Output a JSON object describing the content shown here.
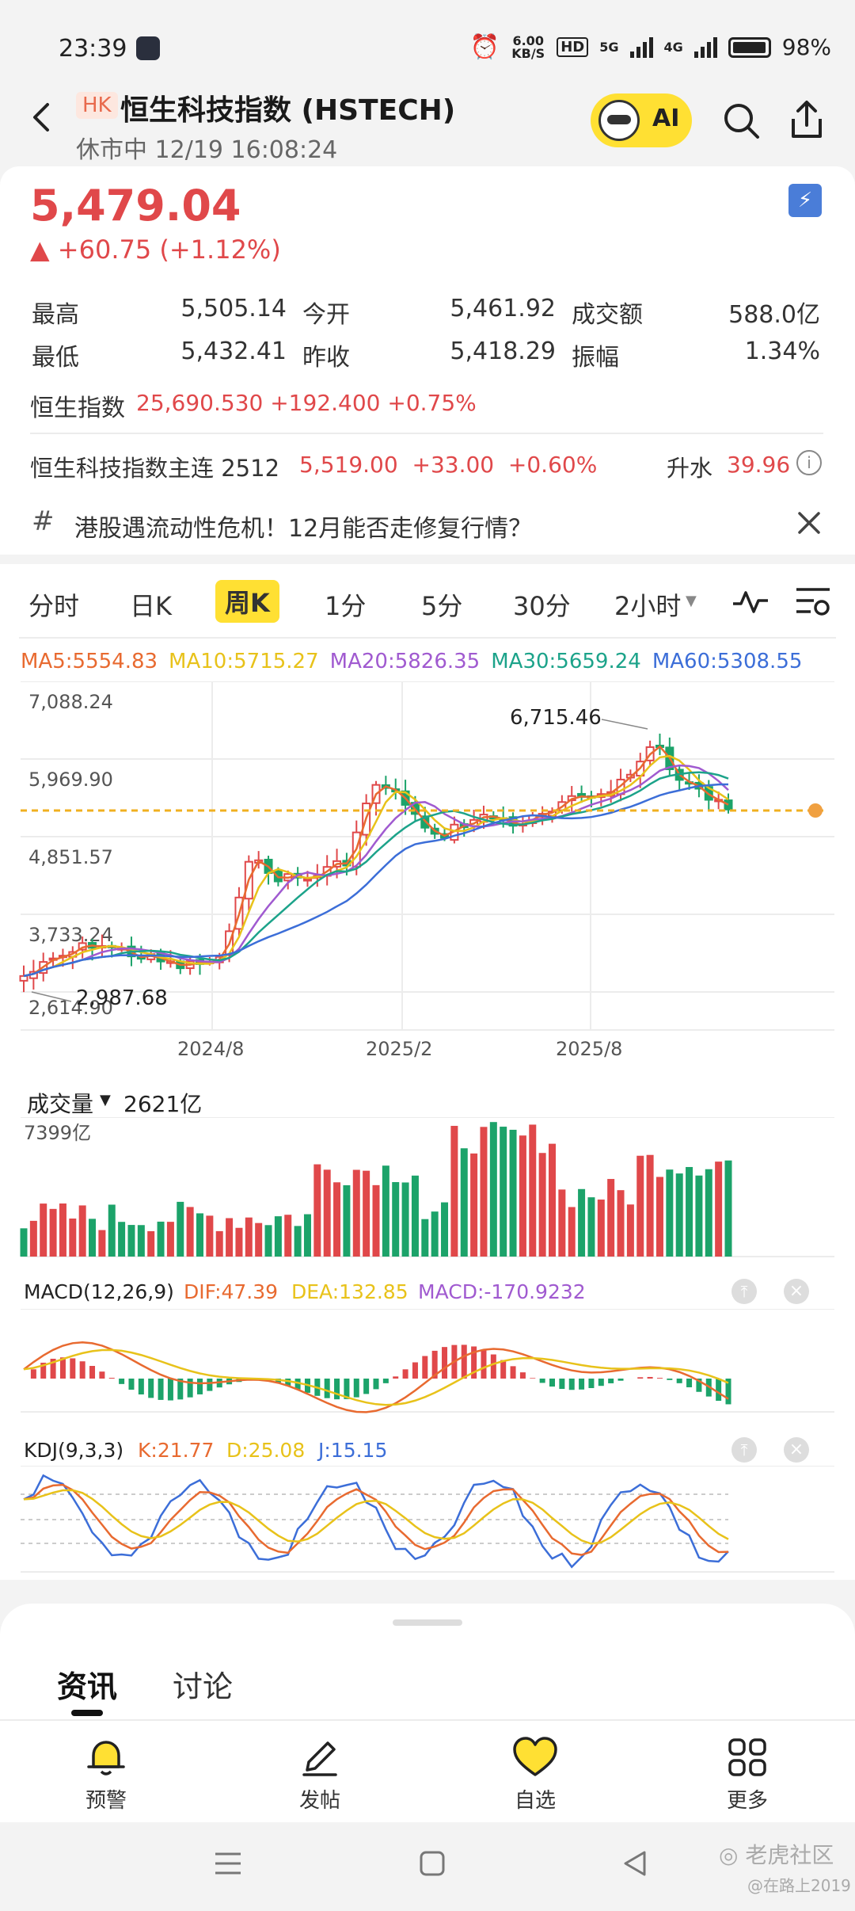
{
  "status": {
    "time": "23:39",
    "speed": "6.00 KB/S",
    "hd": "HD",
    "net1": "5G",
    "net2": "4G",
    "battery": "98%"
  },
  "header": {
    "badge": "HK",
    "title": "恒生科技指数 (HSTECH)",
    "subtitle": "休市中 12/19 16:08:24",
    "ai": "AI"
  },
  "quote": {
    "price": "5,479.04",
    "change": "▲ +60.75 (+1.12%)",
    "stats": [
      {
        "label": "最高",
        "value": "5,505.14"
      },
      {
        "label": "今开",
        "value": "5,461.92"
      },
      {
        "label": "成交额",
        "value": "588.0亿"
      },
      {
        "label": "最低",
        "value": "5,432.41"
      },
      {
        "label": "昨收",
        "value": "5,418.29"
      },
      {
        "label": "振幅",
        "value": "1.34%"
      }
    ],
    "hsi_label": "恒生指数",
    "hsi_value": "25,690.530 +192.400 +0.75%",
    "futures_label": "恒生科技指数主连 2512",
    "futures_value": "5,519.00  +33.00  +0.60%",
    "premium_label": "升水",
    "premium_value": "39.96"
  },
  "news": {
    "text": "港股遇流动性危机！12月能否走修复行情？"
  },
  "tabs": [
    "分时",
    "日K",
    "周K",
    "1分",
    "5分",
    "30分",
    "2小时"
  ],
  "ma": [
    {
      "label": "MA5:5554.83",
      "color": "#e86a30"
    },
    {
      "label": "MA10:5715.27",
      "color": "#e8c21a"
    },
    {
      "label": "MA20:5826.35",
      "color": "#a05ad0"
    },
    {
      "label": "MA30:5659.24",
      "color": "#1ca38a"
    },
    {
      "label": "MA60:5308.55",
      "color": "#3c6ed8"
    }
  ],
  "price_axis": [
    "7,088.24",
    "5,969.90",
    "4,851.57",
    "3,733.24",
    "2,614.90"
  ],
  "annotations": {
    "high": "6,715.46",
    "low": "2,987.68"
  },
  "x_axis": [
    "2024/8",
    "2025/2",
    "2025/8"
  ],
  "volume": {
    "label": "成交量",
    "value": "2621亿",
    "max": "7399亿"
  },
  "macd": {
    "label": "MACD(12,26,9)",
    "dif": "DIF:47.39",
    "dea": "DEA:132.85",
    "macd": "MACD:-170.9232"
  },
  "kdj": {
    "label": "KDJ(9,3,3)",
    "k": "K:21.77",
    "d": "D:25.08",
    "j": "J:15.15"
  },
  "sheet_tabs": {
    "news": "资讯",
    "discuss": "讨论"
  },
  "nav": [
    {
      "label": "预警",
      "icon": "bell-icon"
    },
    {
      "label": "发帖",
      "icon": "pen-icon"
    },
    {
      "label": "自选",
      "icon": "heart-icon"
    },
    {
      "label": "更多",
      "icon": "grid-icon"
    }
  ],
  "watermark": {
    "brand": "老虎社区",
    "user": "@在路上2019"
  },
  "colors": {
    "up": "#e0484a",
    "down": "#1ca36a",
    "accent": "#ffe033"
  }
}
